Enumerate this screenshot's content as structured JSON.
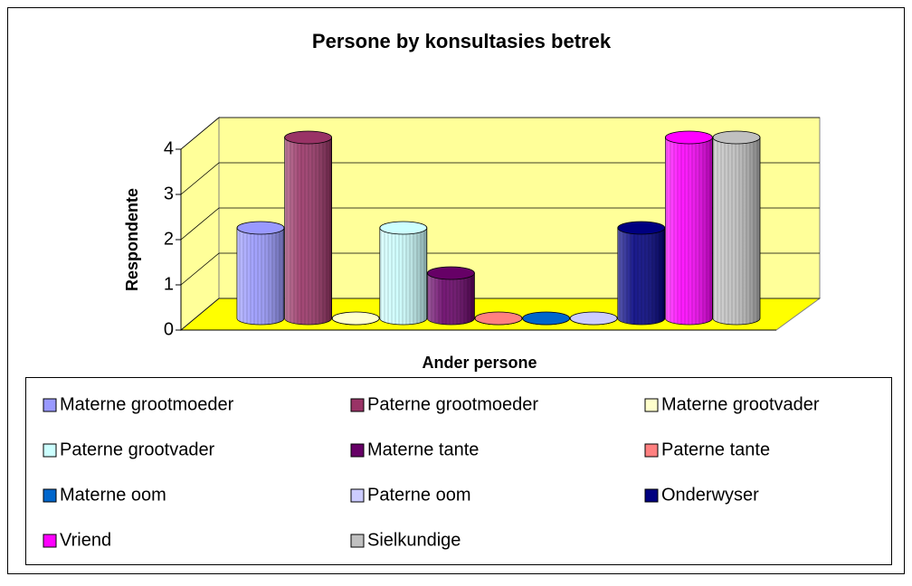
{
  "chart_data": {
    "type": "bar3d",
    "title": "Persone by konsultasies betrek",
    "x_label": "Ander persone",
    "y_label": "Respondente",
    "ylim": [
      0,
      4
    ],
    "yticks": [
      0,
      1,
      2,
      3,
      4
    ],
    "grid": true,
    "series": [
      {
        "name": "Materne grootmoeder",
        "color": "#9999ff",
        "values": [
          2
        ]
      },
      {
        "name": "Paterne grootmoeder",
        "color": "#993366",
        "values": [
          4
        ]
      },
      {
        "name": "Materne grootvader",
        "color": "#ffffcc",
        "values": [
          0
        ]
      },
      {
        "name": "Paterne grootvader",
        "color": "#ccffff",
        "values": [
          2
        ]
      },
      {
        "name": "Materne tante",
        "color": "#660066",
        "values": [
          1
        ]
      },
      {
        "name": "Paterne tante",
        "color": "#ff8080",
        "values": [
          0
        ]
      },
      {
        "name": "Materne oom",
        "color": "#0066cc",
        "values": [
          0
        ]
      },
      {
        "name": "Paterne oom",
        "color": "#ccccff",
        "values": [
          0
        ]
      },
      {
        "name": "Onderwyser",
        "color": "#000080",
        "values": [
          2
        ]
      },
      {
        "name": "Vriend",
        "color": "#ff00ff",
        "values": [
          4
        ]
      },
      {
        "name": "Sielkundige",
        "color": "#c0c0c0",
        "values": [
          4
        ]
      }
    ],
    "legend": "bottom"
  }
}
